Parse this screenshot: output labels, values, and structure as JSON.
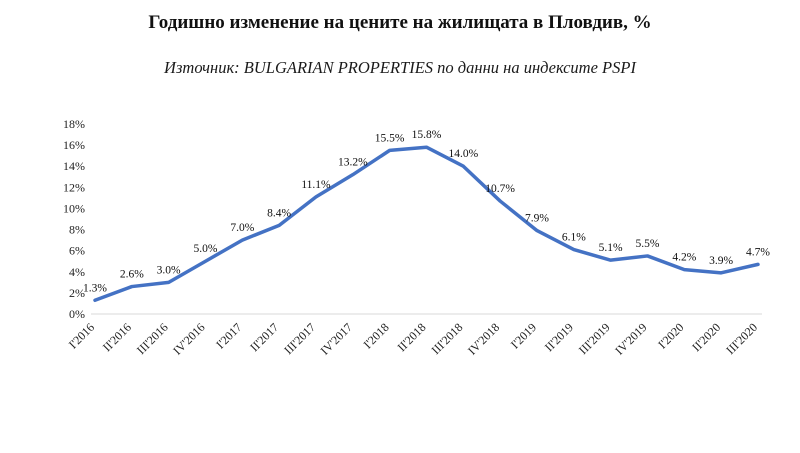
{
  "chart_data": {
    "type": "line",
    "title": "Годишно изменение на цените на жилищата в Пловдив, %",
    "subtitle": "Източник: BULGARIAN PROPERTIES по данни на индексите PSPI",
    "categories": [
      "I'2016",
      "II'2016",
      "III'2016",
      "IV'2016",
      "I'2017",
      "II'2017",
      "III'2017",
      "IV'2017",
      "I'2018",
      "II'2018",
      "III'2018",
      "IV'2018",
      "I'2019",
      "II'2019",
      "III'2019",
      "IV'2019",
      "I'2020",
      "II'2020",
      "III'2020"
    ],
    "series": [
      {
        "name": "Годишно изменение на цените",
        "values": [
          1.3,
          2.6,
          3.0,
          5.0,
          7.0,
          8.4,
          11.1,
          13.2,
          15.5,
          15.8,
          14.0,
          10.7,
          7.9,
          6.1,
          5.1,
          5.5,
          4.2,
          3.9,
          4.7
        ]
      }
    ],
    "xlabel": "",
    "ylabel": "",
    "ylim": [
      0,
      18
    ],
    "ytick_step": 2,
    "ytick_suffix": "%",
    "grid": false,
    "legend_position": "none",
    "line_color": "#4472C4",
    "axis_line_color": "#d9d9d9"
  }
}
